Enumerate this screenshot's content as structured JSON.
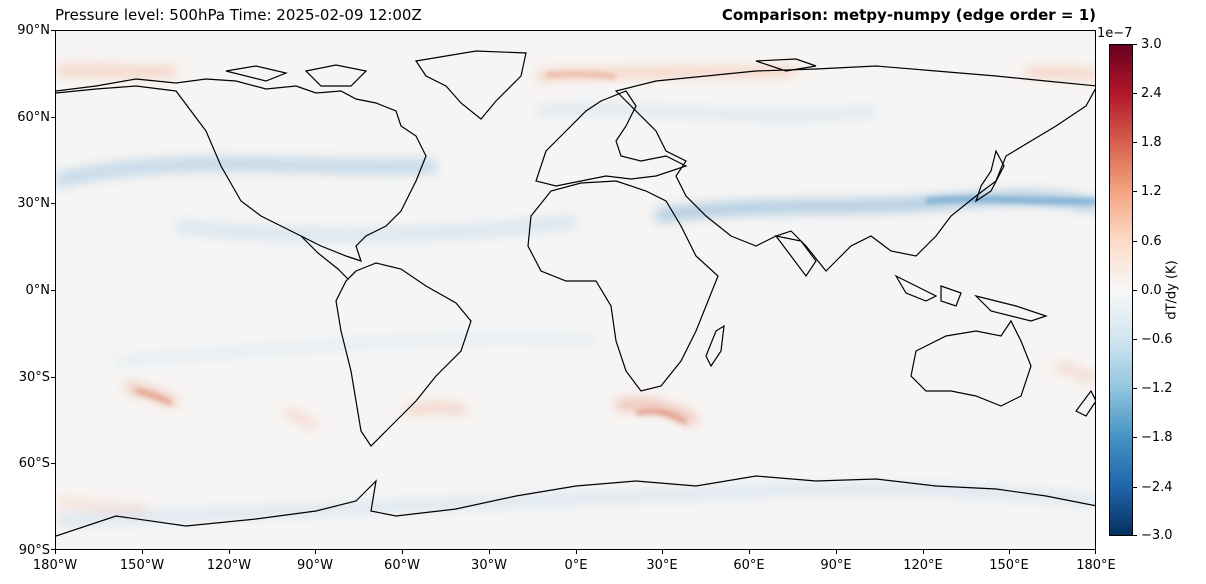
{
  "header": {
    "left_title": "Pressure level: 500hPa Time: 2025-02-09 12:00Z",
    "right_title": "Comparison: metpy-numpy (edge order = 1)"
  },
  "map": {
    "projection": "PlateCarree",
    "lon_range": [
      -180,
      180
    ],
    "lat_range": [
      -90,
      90
    ],
    "lat_ticks": [
      "90°N",
      "60°N",
      "30°N",
      "0°N",
      "30°S",
      "60°S",
      "90°S"
    ],
    "lon_ticks": [
      "180°W",
      "150°W",
      "120°W",
      "90°W",
      "60°W",
      "30°W",
      "0°E",
      "30°E",
      "60°E",
      "90°E",
      "120°E",
      "150°E",
      "180°E"
    ],
    "features": [
      "coastlines"
    ]
  },
  "colorbar": {
    "exponent": "1e−7",
    "label": "dT/dy (K)",
    "colormap": "RdBu_r",
    "range": [
      -3.0,
      3.0
    ],
    "ticks": [
      "3.0",
      "2.4",
      "1.8",
      "1.2",
      "0.6",
      "0.0",
      "−0.6",
      "−1.2",
      "−1.8",
      "−2.4",
      "−3.0"
    ],
    "colors": [
      "#67001f",
      "#b2182b",
      "#d6604d",
      "#f4a582",
      "#fddbc7",
      "#f7f7f7",
      "#d1e5f0",
      "#92c5de",
      "#4393c3",
      "#2166ac",
      "#053061"
    ]
  }
}
